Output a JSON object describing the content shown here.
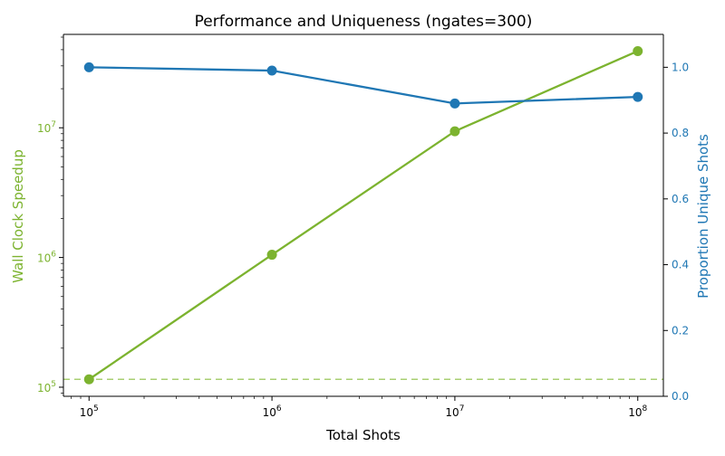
{
  "chart_data": {
    "type": "line",
    "title": "Performance and Uniqueness (ngates=300)",
    "xlabel": "Total Shots",
    "x_scale": "log",
    "x": [
      100000,
      1000000,
      10000000,
      100000000
    ],
    "x_tick_labels": [
      {
        "base": "10",
        "exp": "5"
      },
      {
        "base": "10",
        "exp": "6"
      },
      {
        "base": "10",
        "exp": "7"
      },
      {
        "base": "10",
        "exp": "8"
      }
    ],
    "y_left": {
      "label": "Wall Clock Speedup",
      "scale": "log",
      "color": "#7cb32f",
      "tick_labels": [
        {
          "value": 100000,
          "base": "10",
          "exp": "5"
        },
        {
          "value": 1000000,
          "base": "10",
          "exp": "6"
        },
        {
          "value": 10000000,
          "base": "10",
          "exp": "7"
        }
      ]
    },
    "y_right": {
      "label": "Proportion Unique Shots",
      "scale": "linear",
      "color": "#1f77b4",
      "ylim": [
        0,
        1.1
      ],
      "ticks": [
        "0.0",
        "0.2",
        "0.4",
        "0.6",
        "0.8",
        "1.0"
      ]
    },
    "series": [
      {
        "axis": "left",
        "color": "#7cb32f",
        "values": [
          115000,
          1050000,
          9400000,
          39000000
        ]
      },
      {
        "axis": "right",
        "color": "#1f77b4",
        "values": [
          1.0,
          0.99,
          0.89,
          0.91
        ]
      }
    ],
    "reference_lines": [
      {
        "axis": "left",
        "value": 115000,
        "style": "dashed",
        "color": "#a9cf72"
      }
    ]
  }
}
